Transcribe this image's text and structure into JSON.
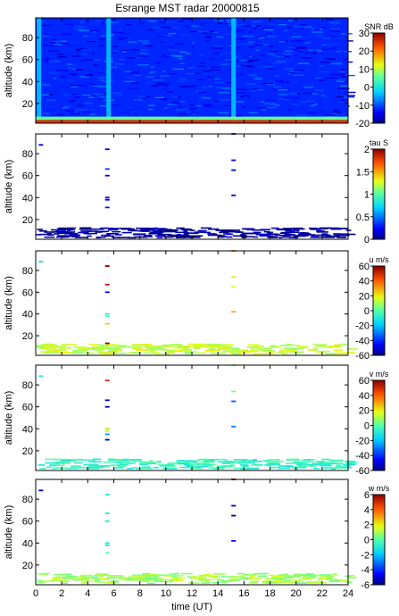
{
  "figure": {
    "title": "Esrange MST radar 20000815"
  },
  "chart_data": [
    {
      "type": "heatmap",
      "title": "Esrange MST radar 20000815",
      "ylabel": "altitude (km)",
      "xlim": [
        0,
        24
      ],
      "ylim": [
        2,
        98
      ],
      "yticks": [
        20,
        40,
        60,
        80
      ],
      "colorbar": {
        "label": "SNR dB",
        "range": [
          -20,
          30
        ],
        "ticks": [
          -20,
          -10,
          0,
          10,
          20,
          30
        ]
      },
      "description_values": {
        "background_snr_db": -12,
        "near_ground_snr_db": 25,
        "noise_columns_ut": [
          0.25,
          5.6,
          15.2
        ],
        "noise_column_snr_db": -4
      }
    },
    {
      "type": "heatmap",
      "ylabel": "altitude (km)",
      "xlim": [
        0,
        24
      ],
      "ylim": [
        2,
        98
      ],
      "yticks": [
        20,
        40,
        60,
        80
      ],
      "colorbar": {
        "label": "tau S",
        "range": [
          0,
          2
        ],
        "ticks": [
          0,
          0.5,
          1,
          1.5,
          2
        ]
      },
      "band": {
        "alt": [
          4,
          13
        ],
        "value": 0.05
      },
      "sparse": [
        {
          "t": 0.4,
          "alt": 88,
          "v": 0.15
        },
        {
          "t": 5.5,
          "alt": 84,
          "v": 0.2
        },
        {
          "t": 5.5,
          "alt": 66,
          "v": 0.35
        },
        {
          "t": 5.5,
          "alt": 60,
          "v": 0.15
        },
        {
          "t": 5.5,
          "alt": 40,
          "v": 0.2
        },
        {
          "t": 5.5,
          "alt": 38,
          "v": 0.15
        },
        {
          "t": 5.5,
          "alt": 31,
          "v": 0.3
        },
        {
          "t": 15.2,
          "alt": 98,
          "v": 0.15
        },
        {
          "t": 15.2,
          "alt": 74,
          "v": 0.2
        },
        {
          "t": 15.2,
          "alt": 65,
          "v": 0.15
        },
        {
          "t": 15.2,
          "alt": 42,
          "v": 0.2
        }
      ]
    },
    {
      "type": "heatmap",
      "ylabel": "altitude (km)",
      "xlim": [
        0,
        24
      ],
      "ylim": [
        2,
        98
      ],
      "yticks": [
        20,
        40,
        60,
        80
      ],
      "colorbar": {
        "label": "u m/s",
        "range": [
          -60,
          60
        ],
        "ticks": [
          -60,
          -40,
          -20,
          0,
          20,
          40,
          60
        ]
      },
      "band": {
        "alt": [
          4,
          13
        ],
        "value": 14
      },
      "sparse": [
        {
          "t": 0.4,
          "alt": 88,
          "v": -15
        },
        {
          "t": 5.5,
          "alt": 84,
          "v": 60
        },
        {
          "t": 5.5,
          "alt": 67,
          "v": 55
        },
        {
          "t": 5.5,
          "alt": 60,
          "v": -45
        },
        {
          "t": 5.5,
          "alt": 40,
          "v": -10
        },
        {
          "t": 5.5,
          "alt": 38,
          "v": 0
        },
        {
          "t": 5.5,
          "alt": 31,
          "v": 25
        },
        {
          "t": 5.5,
          "alt": 13,
          "v": 60
        },
        {
          "t": 15.2,
          "alt": 98,
          "v": 35
        },
        {
          "t": 15.2,
          "alt": 74,
          "v": 20
        },
        {
          "t": 15.2,
          "alt": 65,
          "v": 15
        },
        {
          "t": 15.2,
          "alt": 42,
          "v": 30
        }
      ]
    },
    {
      "type": "heatmap",
      "ylabel": "altitude (km)",
      "xlim": [
        0,
        24
      ],
      "ylim": [
        2,
        98
      ],
      "yticks": [
        20,
        40,
        60,
        80
      ],
      "colorbar": {
        "label": "v m/s",
        "range": [
          -60,
          60
        ],
        "ticks": [
          -60,
          -40,
          -20,
          0,
          20,
          40,
          60
        ]
      },
      "band": {
        "alt": [
          4,
          13
        ],
        "value": -5
      },
      "sparse": [
        {
          "t": 0.4,
          "alt": 88,
          "v": -10
        },
        {
          "t": 5.5,
          "alt": 84,
          "v": 50
        },
        {
          "t": 5.5,
          "alt": 66,
          "v": -50
        },
        {
          "t": 5.5,
          "alt": 60,
          "v": -55
        },
        {
          "t": 5.5,
          "alt": 40,
          "v": 25
        },
        {
          "t": 5.5,
          "alt": 38,
          "v": 10
        },
        {
          "t": 5.5,
          "alt": 35,
          "v": -25
        },
        {
          "t": 5.5,
          "alt": 30,
          "v": -50
        },
        {
          "t": 15.2,
          "alt": 98,
          "v": 0
        },
        {
          "t": 15.2,
          "alt": 74,
          "v": 5
        },
        {
          "t": 15.2,
          "alt": 65,
          "v": -35
        },
        {
          "t": 15.2,
          "alt": 42,
          "v": -30
        }
      ]
    },
    {
      "type": "heatmap",
      "xlabel": "time (UT)",
      "ylabel": "altitude (km)",
      "xlim": [
        0,
        24
      ],
      "ylim": [
        2,
        98
      ],
      "xticks": [
        0,
        2,
        4,
        6,
        8,
        10,
        12,
        14,
        16,
        18,
        20,
        22,
        24
      ],
      "yticks": [
        20,
        40,
        60,
        80
      ],
      "colorbar": {
        "label": "w m/s",
        "range": [
          -6,
          6
        ],
        "ticks": [
          -6,
          -4,
          -2,
          0,
          2,
          4,
          6
        ]
      },
      "band": {
        "alt": [
          4,
          13
        ],
        "value": 1
      },
      "sparse": [
        {
          "t": 0.4,
          "alt": 88,
          "v": -5
        },
        {
          "t": 5.5,
          "alt": 84,
          "v": -1
        },
        {
          "t": 5.5,
          "alt": 67,
          "v": -1
        },
        {
          "t": 5.5,
          "alt": 60,
          "v": -1
        },
        {
          "t": 5.5,
          "alt": 40,
          "v": -1
        },
        {
          "t": 5.5,
          "alt": 38,
          "v": -1.5
        },
        {
          "t": 5.5,
          "alt": 31,
          "v": 0
        },
        {
          "t": 15.2,
          "alt": 98,
          "v": 6
        },
        {
          "t": 15.2,
          "alt": 74,
          "v": -5
        },
        {
          "t": 15.2,
          "alt": 65,
          "v": -6
        },
        {
          "t": 15.2,
          "alt": 42,
          "v": -5
        }
      ]
    }
  ]
}
